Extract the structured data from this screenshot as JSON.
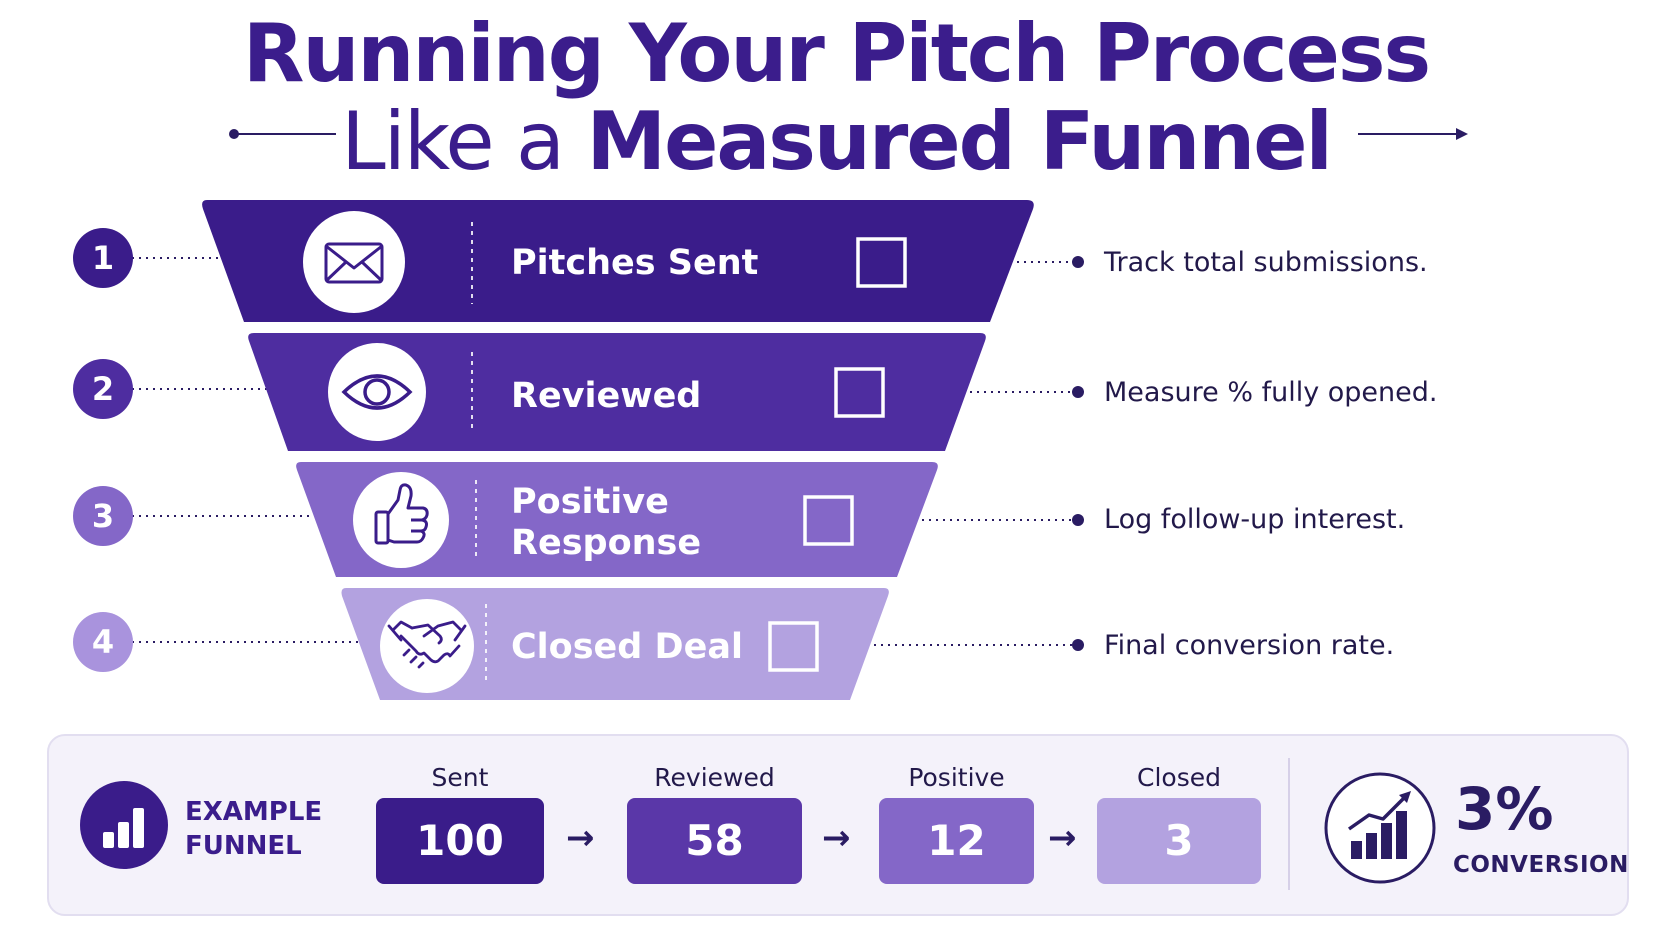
{
  "title": {
    "line1": "Running Your Pitch Process",
    "line2_light": "Like a ",
    "line2_bold": "Measured Funnel"
  },
  "colors": {
    "stage1": "#3a1c8a",
    "stage2": "#4e2da0",
    "stage3": "#8467c8",
    "stage4": "#b3a2e0",
    "text_dark": "#2a1c63"
  },
  "stages": [
    {
      "number": "1",
      "label": "Pitches Sent",
      "icon": "envelope-icon",
      "description": "Track total submissions."
    },
    {
      "number": "2",
      "label": "Reviewed",
      "icon": "eye-icon",
      "description": "Measure % fully opened."
    },
    {
      "number": "3",
      "label": "Positive\nResponse",
      "icon": "thumbs-up-icon",
      "description": "Log follow-up interest."
    },
    {
      "number": "4",
      "label": "Closed Deal",
      "icon": "handshake-icon",
      "description": "Final conversion rate."
    }
  ],
  "example": {
    "title": "EXAMPLE\nFUNNEL",
    "icon": "bar-chart-icon",
    "steps": [
      {
        "label": "Sent",
        "value": "100"
      },
      {
        "label": "Reviewed",
        "value": "58"
      },
      {
        "label": "Positive",
        "value": "12"
      },
      {
        "label": "Closed",
        "value": "3"
      }
    ],
    "arrow": "→",
    "conversion_icon": "trending-up-chart-icon",
    "conversion_value": "3%",
    "conversion_label": "CONVERSION"
  }
}
